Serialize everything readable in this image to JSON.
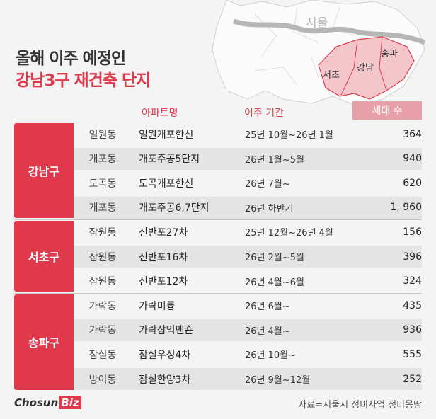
{
  "title": {
    "line1": "올해 이주 예정인",
    "line2": "강남3구 재건축 단지"
  },
  "map": {
    "seoul_label": "서울",
    "districts": [
      "서초",
      "강남",
      "송파"
    ]
  },
  "headers": {
    "apartment": "아파트명",
    "period": "이주 기간",
    "units": "세대 수"
  },
  "groups": [
    {
      "name": "강남구",
      "rows": [
        {
          "dong": "일원동",
          "apt": "일원개포한신",
          "period": "25년 10월~26년 1월",
          "units": "364"
        },
        {
          "dong": "개포동",
          "apt": "개포주공5단지",
          "period": "26년 1월~5월",
          "units": "940"
        },
        {
          "dong": "도곡동",
          "apt": "도곡개포한신",
          "period": "26년 7월~",
          "units": "620"
        },
        {
          "dong": "개포동",
          "apt": "개포주공6,7단지",
          "period": "26년 하반기",
          "units": "1, 960"
        }
      ]
    },
    {
      "name": "서초구",
      "rows": [
        {
          "dong": "잠원동",
          "apt": "신반포27차",
          "period": "25년 12월~26년 4월",
          "units": "156"
        },
        {
          "dong": "잠원동",
          "apt": "신반포16차",
          "period": "26년 2월~5월",
          "units": "396"
        },
        {
          "dong": "잠원동",
          "apt": "신반포12차",
          "period": "26년 4월~6월",
          "units": "324"
        }
      ]
    },
    {
      "name": "송파구",
      "rows": [
        {
          "dong": "가락동",
          "apt": "가락미륭",
          "period": "26년 6월~",
          "units": "435"
        },
        {
          "dong": "가락동",
          "apt": "가락삼익맨숀",
          "period": "26년 4월~",
          "units": "936"
        },
        {
          "dong": "잠실동",
          "apt": "잠실우성4차",
          "period": "26년 10월~",
          "units": "555"
        },
        {
          "dong": "방이동",
          "apt": "잠실한양3차",
          "period": "26년 9월~12월",
          "units": "252"
        }
      ]
    }
  ],
  "footer": {
    "logo_main": "Chosun",
    "logo_biz": "Biz",
    "source": "자료=서울시 정비사업 정비몽땅"
  },
  "colors": {
    "accent": "#e1394c",
    "accent_light": "#e8a0a8",
    "row_alt": "#e4e4e4"
  }
}
